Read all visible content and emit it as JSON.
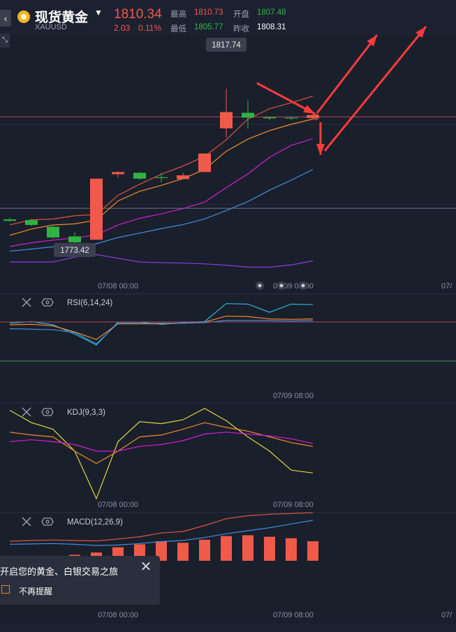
{
  "header": {
    "back_icon": "chevron-left-icon",
    "title": "现货黄金",
    "symbol": "XAUUSD",
    "price": "1810.34",
    "change": "2.03",
    "change_pct": "0.11%",
    "quotes": {
      "high_label": "最高",
      "high": "1810.73",
      "open_label": "开盘",
      "open": "1807.48",
      "low_label": "最低",
      "low": "1805.77",
      "prev_label": "昨收",
      "prev": "1808.31"
    }
  },
  "colors": {
    "up": "#f05a4a",
    "down": "#2fb344",
    "background": "#1a1f2c"
  },
  "chart_data": [
    {
      "type": "candlestick",
      "x_ticks": [
        "07/08 00:00",
        "07/09 08:00",
        "07/"
      ],
      "annotations": {
        "high_label": "1817.74",
        "low_label": "1773.42"
      },
      "candles": [
        {
          "o": 1779.8,
          "h": 1780.2,
          "l": 1779.2,
          "c": 1779.4
        },
        {
          "o": 1779.6,
          "h": 1779.9,
          "l": 1778.0,
          "c": 1778.3
        },
        {
          "o": 1777.8,
          "h": 1778.4,
          "l": 1774.6,
          "c": 1774.9
        },
        {
          "o": 1775.2,
          "h": 1776.3,
          "l": 1772.8,
          "c": 1773.6
        },
        {
          "o": 1774.3,
          "h": 1790.8,
          "l": 1774.3,
          "c": 1790.8
        },
        {
          "o": 1792.0,
          "h": 1792.8,
          "l": 1791.0,
          "c": 1792.6
        },
        {
          "o": 1792.4,
          "h": 1792.6,
          "l": 1790.4,
          "c": 1790.8
        },
        {
          "o": 1791.2,
          "h": 1792.4,
          "l": 1789.8,
          "c": 1791.0
        },
        {
          "o": 1790.7,
          "h": 1792.4,
          "l": 1790.7,
          "c": 1791.7
        },
        {
          "o": 1792.6,
          "h": 1797.6,
          "l": 1792.6,
          "c": 1797.6
        },
        {
          "o": 1804.4,
          "h": 1815.1,
          "l": 1801.9,
          "c": 1808.8
        },
        {
          "o": 1808.6,
          "h": 1812.0,
          "l": 1804.3,
          "c": 1807.3
        },
        {
          "o": 1807.4,
          "h": 1807.6,
          "l": 1806.6,
          "c": 1807.1
        },
        {
          "o": 1807.3,
          "h": 1807.6,
          "l": 1806.6,
          "c": 1807.2
        },
        {
          "o": 1807.2,
          "h": 1808.1,
          "l": 1806.8,
          "c": 1808.0
        }
      ],
      "series": [
        {
          "color": "#e0553e",
          "values": [
            1778.3,
            1779.7,
            1779.9,
            1780.8,
            1781.1,
            1786.3,
            1789.3,
            1792.0,
            1794.2,
            1796.8,
            1801.3,
            1806.9,
            1809.7,
            1811.3,
            1813.1
          ]
        },
        {
          "color": "#f08c2c",
          "values": [
            1775.5,
            1777.2,
            1778.3,
            1778.6,
            1779.6,
            1784.8,
            1787.4,
            1789.0,
            1790.8,
            1793.3,
            1798.2,
            1801.5,
            1803.8,
            1805.5,
            1806.9
          ]
        },
        {
          "color": "#d21fd2",
          "values": [
            1772.5,
            1773.5,
            1774.2,
            1774.8,
            1775.6,
            1778.3,
            1780.1,
            1781.3,
            1782.7,
            1784.5,
            1788.4,
            1792.1,
            1796.6,
            1799.8,
            1801.6
          ]
        },
        {
          "color": "#3e8fe0",
          "values": [
            1771.2,
            1771.8,
            1772.4,
            1772.9,
            1773.2,
            1774.9,
            1776.1,
            1777.3,
            1778.4,
            1779.9,
            1782.2,
            1784.6,
            1787.7,
            1790.4,
            1793.3
          ]
        },
        {
          "color": "#8a3ee0",
          "values": [
            1768.3,
            1768.3,
            1768.3,
            1769.6,
            1770.3,
            1769.3,
            1768.3,
            1768.1,
            1768.0,
            1767.8,
            1767.4,
            1766.9,
            1766.9,
            1767.5,
            1768.6
          ]
        }
      ],
      "ref_lines": [
        1807.5,
        1782.8
      ]
    },
    {
      "type": "line",
      "title": "RSI(6,14,24)",
      "series": [
        {
          "color": "#29b6d6",
          "values": [
            50,
            53,
            47,
            30,
            10,
            52,
            52,
            48,
            51,
            53,
            86,
            85,
            70,
            85,
            84
          ]
        },
        {
          "color": "#f08c2c",
          "values": [
            47,
            48,
            45,
            34,
            20,
            49,
            49,
            49,
            50,
            52,
            63,
            62,
            58,
            57,
            58
          ]
        },
        {
          "color": "#3e8fe0",
          "values": [
            40,
            39,
            38,
            33,
            12,
            50,
            50,
            50,
            50,
            51,
            55,
            55,
            55,
            54,
            55
          ]
        }
      ]
    },
    {
      "type": "line",
      "title": "KDJ(9,3,3)",
      "series": [
        {
          "color": "#d8d83a",
          "values": [
            98,
            85,
            78,
            55,
            5,
            65,
            86,
            84,
            88,
            100,
            87,
            70,
            55,
            35,
            32
          ]
        },
        {
          "color": "#f08c2c",
          "values": [
            75,
            72,
            70,
            55,
            42,
            55,
            70,
            72,
            78,
            85,
            80,
            76,
            70,
            64,
            60
          ]
        },
        {
          "color": "#d21fd2",
          "values": [
            65,
            67,
            65,
            62,
            55,
            55,
            60,
            62,
            66,
            73,
            75,
            73,
            71,
            68,
            63
          ]
        }
      ]
    },
    {
      "type": "bar",
      "title": "MACD(12,26,9)",
      "values": [
        0.2,
        0.25,
        0.3,
        0.4,
        0.55,
        0.9,
        1.1,
        1.3,
        1.2,
        1.4,
        1.65,
        1.7,
        1.6,
        1.5,
        1.3
      ],
      "series": [
        {
          "color": "#e0553e",
          "values": [
            1.3,
            1.35,
            1.38,
            1.35,
            1.32,
            1.45,
            1.6,
            1.85,
            1.95,
            2.35,
            2.8,
            3.0,
            3.1,
            3.15,
            3.2
          ]
        },
        {
          "color": "#3e8fe0",
          "values": [
            1.1,
            1.12,
            1.15,
            1.1,
            1.02,
            1.05,
            1.15,
            1.28,
            1.35,
            1.55,
            1.8,
            2.0,
            2.2,
            2.45,
            2.7
          ]
        }
      ]
    }
  ],
  "panels": {
    "rsi": {
      "close_icon": "close-icon",
      "settings_icon": "hexagon-settings-icon",
      "x_ticks": [
        "07/09 08:00"
      ]
    },
    "kdj": {
      "close_icon": "close-icon",
      "settings_icon": "hexagon-settings-icon",
      "x_ticks": [
        "07/08 00:00",
        "07/09 08:00"
      ]
    },
    "macd": {
      "close_icon": "close-icon",
      "settings_icon": "hexagon-settings-icon",
      "x_ticks": [
        "07/08 00:00",
        "07/09 08:00",
        "07/"
      ]
    }
  },
  "popup": {
    "text": "开启您的黄金、白银交易之旅",
    "checkbox_label": "不再提醒",
    "close_icon": "close-icon"
  }
}
